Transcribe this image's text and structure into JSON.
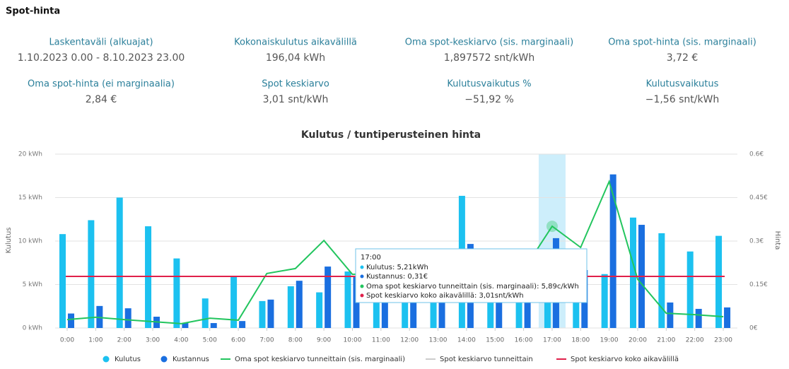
{
  "header": {
    "title": "Spot-hinta"
  },
  "kpis": [
    {
      "label": "Laskentaväli (alkuajat)",
      "value": "1.10.2023 0.00 - 8.10.2023 23.00"
    },
    {
      "label": "Kokonaiskulutus aikavälillä",
      "value": "196,04 kWh"
    },
    {
      "label": "Oma spot-keskiarvo (sis. marginaali)",
      "value": "1,897572 snt/kWh"
    },
    {
      "label": "Oma spot-hinta (sis. marginaali)",
      "value": "3,72 €"
    },
    {
      "label": "Oma spot-hinta (ei marginaalia)",
      "value": "2,84 €"
    },
    {
      "label": "Spot keskiarvo",
      "value": "3,01 snt/kWh"
    },
    {
      "label": "Kulutusvaikutus %",
      "value": "−51,92 %"
    },
    {
      "label": "Kulutusvaikutus",
      "value": "−1,56 snt/kWh"
    }
  ],
  "chart_data": {
    "type": "bar",
    "title": "Kulutus / tuntiperusteinen hinta",
    "y_label": "Kulutus",
    "y2_label": "Hinta",
    "categories": [
      "0:00",
      "1:00",
      "2:00",
      "3:00",
      "4:00",
      "5:00",
      "6:00",
      "7:00",
      "8:00",
      "9:00",
      "10:00",
      "11:00",
      "12:00",
      "13:00",
      "14:00",
      "15:00",
      "16:00",
      "17:00",
      "18:00",
      "19:00",
      "20:00",
      "21:00",
      "22:00",
      "23:00"
    ],
    "ylim": [
      0,
      20
    ],
    "yticks": [
      {
        "value": 0,
        "label": "0 kWh"
      },
      {
        "value": 5,
        "label": "5 kWh"
      },
      {
        "value": 10,
        "label": "10 kWh"
      },
      {
        "value": 15,
        "label": "15 kWh"
      },
      {
        "value": 20,
        "label": "20 kWh"
      }
    ],
    "y2lim": [
      0,
      0.6
    ],
    "y2ticks": [
      {
        "value": 0,
        "label": "0€"
      },
      {
        "value": 0.15,
        "label": "0.15€"
      },
      {
        "value": 0.3,
        "label": "0.3€"
      },
      {
        "value": 0.45,
        "label": "0.45€"
      },
      {
        "value": 0.6,
        "label": "0.6€"
      }
    ],
    "grid": true,
    "highlight": "17:00",
    "series": [
      {
        "name": "Kulutus",
        "type": "bar",
        "color": "#1cc1f0",
        "axis": "y",
        "values": [
          10.8,
          12.4,
          15.0,
          11.7,
          8.0,
          3.4,
          5.9,
          3.1,
          4.8,
          4.1,
          6.5,
          5.5,
          5.0,
          5.5,
          15.2,
          6.0,
          5.5,
          5.21,
          6.0,
          6.2,
          12.7,
          10.9,
          8.8,
          10.6
        ]
      },
      {
        "name": "Kustannus",
        "type": "bar",
        "color": "#1a6fe0",
        "axis": "y2",
        "values": [
          0.05,
          0.076,
          0.068,
          0.039,
          0.017,
          0.017,
          0.024,
          0.098,
          0.163,
          0.212,
          0.176,
          0.15,
          0.14,
          0.15,
          0.29,
          0.17,
          0.16,
          0.31,
          0.2,
          0.53,
          0.356,
          0.088,
          0.066,
          0.071
        ]
      },
      {
        "name": "Oma spot keskiarvo tunneittain (sis. marginaali)",
        "type": "line",
        "color": "#22c55e",
        "axis": "y2",
        "values": [
          0.029,
          0.037,
          0.029,
          0.022,
          0.015,
          0.034,
          0.027,
          0.188,
          0.205,
          0.302,
          0.185,
          0.19,
          0.18,
          0.18,
          0.19,
          0.19,
          0.2,
          0.351,
          0.278,
          0.505,
          0.168,
          0.051,
          0.046,
          0.039
        ]
      },
      {
        "name": "Spot keskiarvo tunneittain",
        "type": "line",
        "color": "#c8c8c8",
        "axis": "y2",
        "hidden": true
      },
      {
        "name": "Spot keskiarvo koko aikavälillä",
        "type": "constant",
        "color": "#e0204a",
        "axis": "y2",
        "value": 0.178
      }
    ],
    "tooltip": {
      "title": "17:00",
      "lines": [
        "Kulutus: 5,21kWh",
        "Kustannus: 0,31€",
        "Oma spot keskiarvo tunneittain (sis. marginaali): 5,89c/kWh",
        "Spot keskiarvo koko aikavälillä: 3,01snt/kWh"
      ]
    }
  }
}
